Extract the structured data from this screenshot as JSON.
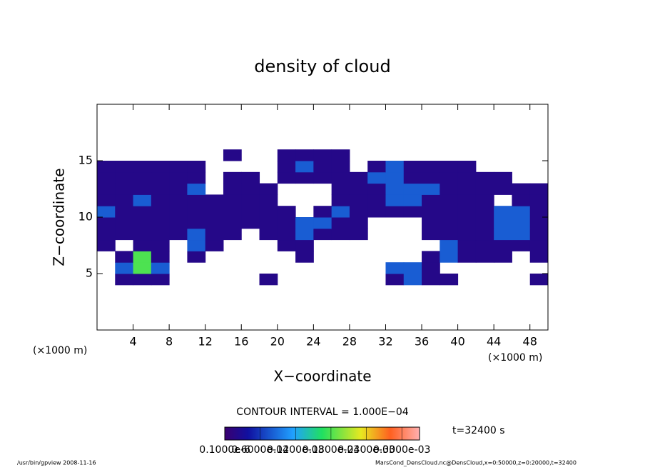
{
  "chart_data": {
    "type": "contour",
    "title": "density of cloud",
    "x_label": "X−coordinate",
    "y_label": "Z−coordinate",
    "x_unit": "(×1000 m)",
    "y_unit": "(×1000 m)",
    "contour_interval": "CONTOUR INTERVAL = 1.000E−04",
    "time_label": "t=32400 s",
    "footer_left": "/usr/bin/gpview   2008-11-16",
    "footer_right": "MarsCond_DensCloud.nc@DensCloud,x=0:50000,z=0:20000,t=32400",
    "xlim": [
      0,
      50
    ],
    "xticks": [
      4,
      8,
      12,
      16,
      20,
      24,
      28,
      32,
      36,
      40,
      44,
      48
    ],
    "ylim": [
      0,
      20
    ],
    "yticks": [
      5,
      10,
      15
    ],
    "clim": [
      0,
      0.00033
    ],
    "cticks": [
      {
        "value": 1e-07,
        "label": "0.1000e-6"
      },
      {
        "value": 6e-05,
        "label": "0.6000e-04"
      },
      {
        "value": 0.00012,
        "label": "0.1200e-03"
      },
      {
        "value": 0.00018,
        "label": "0.1800e-03"
      },
      {
        "value": 0.00024,
        "label": "0.2400e-03"
      },
      {
        "value": 0.0003,
        "label": "0.3000e-03"
      }
    ],
    "x": [
      1,
      3,
      5,
      7,
      9,
      11,
      13,
      15,
      17,
      19,
      21,
      23,
      25,
      27,
      29,
      31,
      33,
      35,
      37,
      39,
      41,
      43,
      45,
      47,
      49
    ],
    "y": [
      4.5,
      5.5,
      6.5,
      7.5,
      8.5,
      9.5,
      10.5,
      11.5,
      12.5,
      13.5,
      14.5,
      15.5
    ],
    "z": [
      [
        null,
        2e-05,
        2e-05,
        2e-05,
        null,
        null,
        null,
        null,
        null,
        2e-05,
        null,
        null,
        null,
        null,
        null,
        null,
        2e-05,
        8e-05,
        2e-05,
        2e-05,
        null,
        null,
        null,
        null,
        2e-05
      ],
      [
        null,
        8e-05,
        0.00018,
        8e-05,
        null,
        null,
        null,
        null,
        null,
        null,
        null,
        null,
        null,
        null,
        null,
        null,
        8e-05,
        8e-05,
        2e-05,
        null,
        null,
        null,
        null,
        null,
        null
      ],
      [
        null,
        2e-05,
        0.00018,
        2e-05,
        null,
        2e-05,
        null,
        null,
        null,
        null,
        null,
        2e-05,
        null,
        null,
        null,
        null,
        null,
        null,
        2e-05,
        8e-05,
        2e-05,
        2e-05,
        2e-05,
        null,
        2e-05
      ],
      [
        2e-05,
        null,
        2e-05,
        2e-05,
        null,
        8e-05,
        2e-05,
        null,
        null,
        null,
        2e-05,
        2e-05,
        null,
        null,
        null,
        null,
        null,
        null,
        null,
        8e-05,
        2e-05,
        2e-05,
        2e-05,
        2e-05,
        2e-05
      ],
      [
        2e-05,
        2e-05,
        2e-05,
        2e-05,
        2e-05,
        8e-05,
        2e-05,
        2e-05,
        null,
        2e-05,
        2e-05,
        8e-05,
        2e-05,
        2e-05,
        2e-05,
        null,
        null,
        null,
        2e-05,
        2e-05,
        2e-05,
        2e-05,
        8e-05,
        8e-05,
        2e-05
      ],
      [
        2e-05,
        2e-05,
        2e-05,
        2e-05,
        2e-05,
        2e-05,
        2e-05,
        2e-05,
        2e-05,
        2e-05,
        2e-05,
        8e-05,
        8e-05,
        2e-05,
        2e-05,
        null,
        null,
        null,
        2e-05,
        2e-05,
        2e-05,
        2e-05,
        8e-05,
        8e-05,
        2e-05
      ],
      [
        8e-05,
        2e-05,
        2e-05,
        2e-05,
        2e-05,
        2e-05,
        2e-05,
        2e-05,
        2e-05,
        2e-05,
        2e-05,
        null,
        2e-05,
        8e-05,
        2e-05,
        2e-05,
        2e-05,
        2e-05,
        2e-05,
        2e-05,
        2e-05,
        2e-05,
        8e-05,
        8e-05,
        2e-05
      ],
      [
        2e-05,
        2e-05,
        8e-05,
        2e-05,
        2e-05,
        2e-05,
        2e-05,
        2e-05,
        2e-05,
        2e-05,
        null,
        null,
        null,
        2e-05,
        2e-05,
        2e-05,
        8e-05,
        8e-05,
        2e-05,
        2e-05,
        2e-05,
        2e-05,
        null,
        2e-05,
        2e-05
      ],
      [
        2e-05,
        2e-05,
        2e-05,
        2e-05,
        2e-05,
        8e-05,
        null,
        2e-05,
        2e-05,
        2e-05,
        null,
        null,
        null,
        2e-05,
        2e-05,
        2e-05,
        8e-05,
        8e-05,
        8e-05,
        2e-05,
        2e-05,
        2e-05,
        2e-05,
        2e-05,
        2e-05
      ],
      [
        2e-05,
        2e-05,
        2e-05,
        2e-05,
        2e-05,
        2e-05,
        null,
        2e-05,
        2e-05,
        null,
        2e-05,
        2e-05,
        2e-05,
        2e-05,
        2e-05,
        8e-05,
        8e-05,
        2e-05,
        2e-05,
        2e-05,
        2e-05,
        2e-05,
        2e-05,
        null,
        null
      ],
      [
        2e-05,
        2e-05,
        2e-05,
        2e-05,
        2e-05,
        2e-05,
        null,
        null,
        null,
        null,
        2e-05,
        8e-05,
        2e-05,
        2e-05,
        null,
        2e-05,
        8e-05,
        2e-05,
        2e-05,
        2e-05,
        2e-05,
        null,
        null,
        null,
        null
      ],
      [
        null,
        null,
        null,
        null,
        null,
        null,
        null,
        2e-05,
        null,
        null,
        2e-05,
        2e-05,
        2e-05,
        2e-05,
        null,
        null,
        null,
        null,
        null,
        null,
        null,
        null,
        null,
        null,
        null
      ]
    ]
  }
}
